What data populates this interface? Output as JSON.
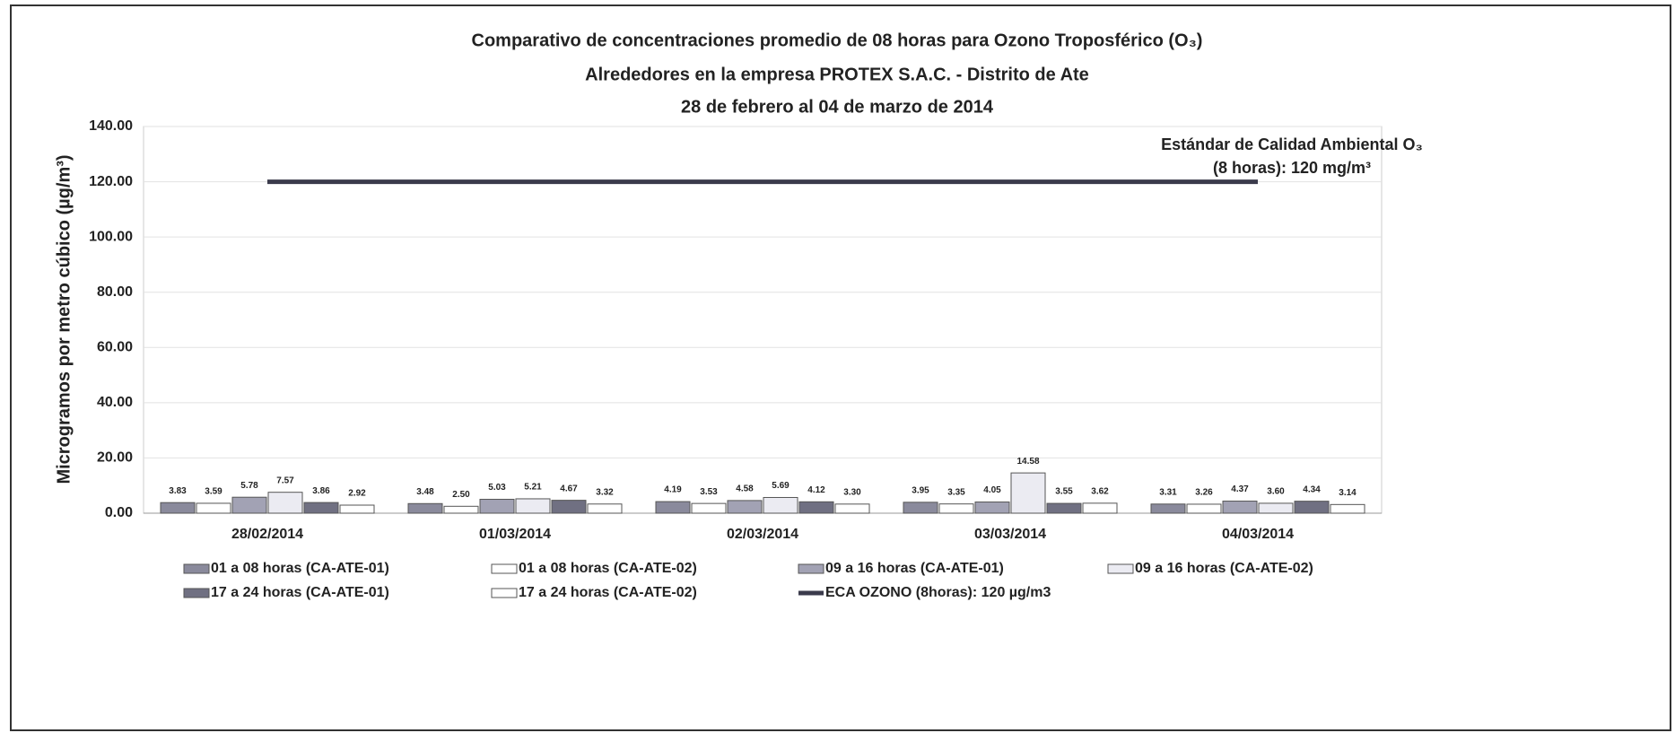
{
  "chart_data": {
    "type": "bar",
    "title": [
      "Comparativo de concentraciones promedio de 08 horas para Ozono Troposférico (O₃)",
      "Alrededores en la empresa PROTEX S.A.C. - Distrito de Ate",
      "28 de febrero al 04 de marzo de 2014"
    ],
    "y_label": "Microgramos por metro cúbico (µg/m³)",
    "annotations": [
      "Estándar de Calidad Ambiental O₃",
      "(8 horas): 120 mg/m³"
    ],
    "categories": [
      "28/02/2014",
      "01/03/2014",
      "02/03/2014",
      "03/03/2014",
      "04/03/2014"
    ],
    "series": [
      {
        "name": "01 a 08 horas (CA-ATE-01)",
        "color": "#8a8a9c",
        "values": [
          3.83,
          3.48,
          4.19,
          3.95,
          3.31
        ],
        "value_labels": [
          "3.83",
          "3.48",
          "4.19",
          "3.95",
          "3.31"
        ]
      },
      {
        "name": "01 a 08 horas (CA-ATE-02)",
        "color": "#ffffff",
        "values": [
          3.59,
          2.5,
          3.53,
          3.35,
          3.26
        ],
        "value_labels": [
          "3.59",
          "2.50",
          "3.53",
          "3.35",
          "3.26"
        ]
      },
      {
        "name": "09 a 16 horas (CA-ATE-01)",
        "color": "#a2a2b4",
        "values": [
          5.78,
          5.03,
          4.58,
          4.05,
          4.37
        ],
        "value_labels": [
          "5.78",
          "5.03",
          "4.58",
          "4.05",
          "4.37"
        ]
      },
      {
        "name": "09 a 16 horas (CA-ATE-02)",
        "color": "#ebebf2",
        "values": [
          7.57,
          5.21,
          5.69,
          14.58,
          3.6
        ],
        "value_labels": [
          "7.57",
          "5.21",
          "5.69",
          "14.58",
          "3.60"
        ]
      },
      {
        "name": "17 a 24 horas (CA-ATE-01)",
        "color": "#707082",
        "values": [
          3.86,
          4.67,
          4.12,
          3.55,
          4.34
        ],
        "value_labels": [
          "3.86",
          "4.67",
          "4.12",
          "3.55",
          "4.34"
        ]
      },
      {
        "name": "17 a 24 horas (CA-ATE-02)",
        "color": "#ffffff",
        "values": [
          2.92,
          3.32,
          3.3,
          3.62,
          3.14
        ],
        "value_labels": [
          "2.92",
          "3.32",
          "3.30",
          "3.62",
          "3.14"
        ]
      }
    ],
    "reference_line": {
      "name": "ECA OZONO (8horas): 120 µg/m3",
      "value": 120,
      "color": "#3b3b4c"
    },
    "ylim": [
      0,
      140
    ],
    "yticks": [
      {
        "value": 0,
        "label": "0.00"
      },
      {
        "value": 20,
        "label": "20.00"
      },
      {
        "value": 40,
        "label": "40.00"
      },
      {
        "value": 60,
        "label": "60.00"
      },
      {
        "value": 80,
        "label": "80.00"
      },
      {
        "value": 100,
        "label": "100.00"
      },
      {
        "value": 120,
        "label": "120.00"
      },
      {
        "value": 140,
        "label": "140.00"
      }
    ],
    "grid": true
  }
}
